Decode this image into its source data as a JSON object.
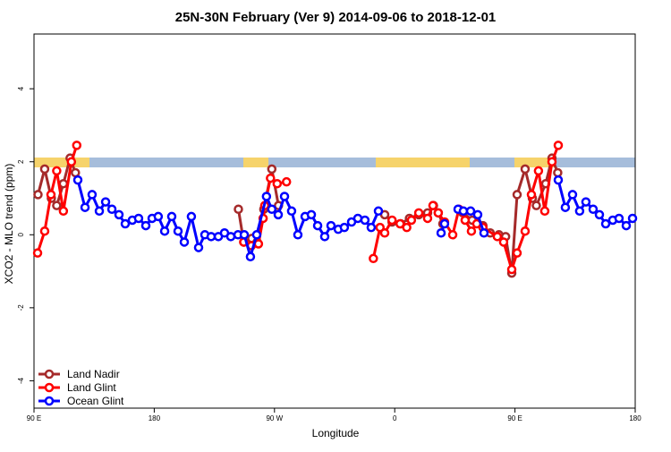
{
  "chart_data": {
    "type": "line",
    "title": "25N-30N February (Ver 9)   2014-09-06 to 2018-12-01",
    "x_label": "Longitude",
    "y_label": "XCO2 - MLO trend (ppm)",
    "xlim": [
      90,
      540
    ],
    "ylim": [
      -4.75,
      5.5
    ],
    "xticks": [
      {
        "value": 90,
        "label": "90 E"
      },
      180,
      {
        "value": 270,
        "label": "90 W"
      },
      {
        "value": 360,
        "label": "0"
      },
      {
        "value": 450,
        "label": "90 E"
      },
      {
        "value": 540,
        "label": "180"
      }
    ],
    "yticks": [
      -4,
      -2,
      0,
      2,
      4
    ],
    "legend": "bottom-left",
    "series": [
      {
        "name": "Land Nadir",
        "color": "#a52a2a",
        "x": [
          93,
          98,
          103,
          107,
          112,
          117,
          121,
          null,
          243,
          247,
          253,
          257,
          262,
          268,
          273,
          null,
          352.5,
          358,
          364.5,
          371,
          378,
          384.6,
          389,
          392.6,
          396,
          null,
          411,
          418,
          426,
          431.5,
          438,
          443,
          447.6,
          451.6,
          457.6,
          463,
          466,
          473,
          477.7,
          482
        ],
        "values": [
          1.1,
          1.8,
          1.0,
          0.8,
          1.4,
          2.1,
          1.7,
          null,
          0.7,
          -0.2,
          -0.1,
          -0.2,
          0.7,
          1.8,
          0.8,
          null,
          0.55,
          0.35,
          0.3,
          0.45,
          0.55,
          0.6,
          0.8,
          0.6,
          0.3,
          null,
          0.6,
          0.4,
          0.25,
          0.05,
          0,
          -0.05,
          -1.05,
          1.1,
          1.8,
          1.0,
          0.8,
          1.4,
          2.1,
          1.7
        ]
      },
      {
        "name": "Land Glint",
        "color": "#ff0000",
        "x": [
          92.7,
          98,
          102.7,
          107,
          112,
          118,
          122,
          null,
          247,
          252.7,
          258,
          261.5,
          262.7,
          267,
          272,
          279,
          null,
          344,
          349,
          352.5,
          358,
          364,
          369,
          372.5,
          378,
          384.6,
          388.6,
          392.6,
          397.3,
          403.4,
          408,
          412.7,
          417.4,
          421.4,
          426,
          436.8,
          441.5,
          447.6,
          451.6,
          457.6,
          462.3,
          467.6,
          472.3,
          477.7,
          482.4
        ],
        "values": [
          -0.5,
          0.1,
          1.1,
          1.75,
          0.65,
          2.0,
          2.45,
          null,
          -0.2,
          -0.3,
          -0.25,
          0.45,
          0.8,
          1.55,
          1.4,
          1.45,
          null,
          -0.65,
          0.2,
          0.05,
          0.4,
          0.3,
          0.2,
          0.4,
          0.6,
          0.45,
          0.8,
          0.6,
          0.35,
          0,
          0.7,
          0.4,
          0.1,
          0.3,
          0.2,
          -0.05,
          -0.2,
          -0.95,
          -0.5,
          0.1,
          1.1,
          1.75,
          0.65,
          2.0,
          2.45
        ]
      },
      {
        "name": "Ocean Glint",
        "color": "#0000ff",
        "x": [
          122.8,
          128.2,
          133.5,
          138.9,
          143.6,
          148.3,
          153.6,
          158.3,
          163.6,
          168.3,
          173.7,
          178.4,
          183,
          187.8,
          193.1,
          197.8,
          202.5,
          207.8,
          213.2,
          217.9,
          222.6,
          228,
          232.6,
          237.3,
          242.7,
          247.4,
          252,
          256.7,
          264,
          268,
          272.8,
          277.5,
          282.8,
          287.5,
          292.9,
          297.6,
          302.3,
          307.6,
          312.3,
          317.7,
          322.3,
          327.7,
          332.4,
          337.7,
          342.4,
          347.8,
          null,
          394.7,
          397.3,
          null,
          407.4,
          411.4,
          416.8,
          422.1,
          426.8,
          null,
          482.4,
          487.7,
          493.1,
          498.4,
          503.1,
          508.5,
          513.2,
          517.9,
          523.2,
          527.9,
          533.3,
          538
        ],
        "values": [
          1.5,
          0.75,
          1.1,
          0.65,
          0.9,
          0.7,
          0.55,
          0.3,
          0.4,
          0.45,
          0.25,
          0.45,
          0.5,
          0.1,
          0.5,
          0.1,
          -0.2,
          0.5,
          -0.35,
          0,
          -0.05,
          -0.05,
          0.05,
          -0.05,
          0,
          0,
          -0.6,
          0,
          1.05,
          0.7,
          0.55,
          1.05,
          0.65,
          0,
          0.5,
          0.55,
          0.25,
          -0.05,
          0.25,
          0.15,
          0.2,
          0.35,
          0.45,
          0.4,
          0.2,
          0.65,
          null,
          0.05,
          0.3,
          null,
          0.7,
          0.65,
          0.65,
          0.55,
          0.05,
          null,
          1.5,
          0.75,
          1.1,
          0.65,
          0.9,
          0.7,
          0.55,
          0.3,
          0.4,
          0.45,
          0.25,
          0.45
        ]
      }
    ]
  }
}
